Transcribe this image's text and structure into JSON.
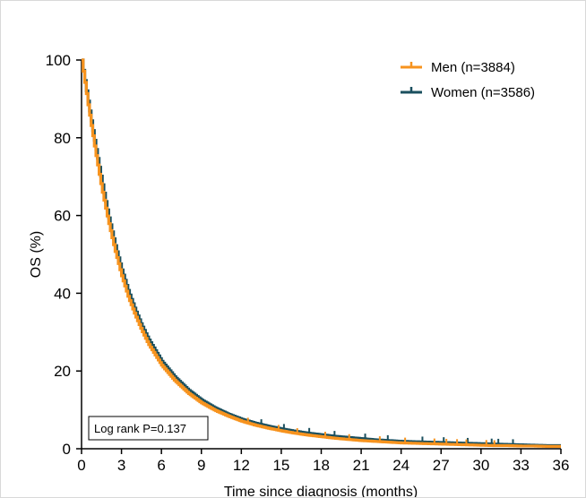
{
  "chart_data": {
    "type": "line",
    "xlabel": "Time since diagnosis (months)",
    "ylabel": "OS (%)",
    "xlim": [
      0,
      36
    ],
    "ylim": [
      0,
      100
    ],
    "xticks": [
      0,
      3,
      6,
      9,
      12,
      15,
      18,
      21,
      24,
      27,
      30,
      33,
      36
    ],
    "yticks": [
      0,
      20,
      40,
      60,
      80,
      100
    ],
    "grid": false,
    "legend_position": "top-right",
    "annotation": "Log rank P=0.137",
    "series": [
      {
        "name": "Men (n=3884)",
        "color": "#f7931e",
        "x": [
          0,
          0.5,
          1,
          1.5,
          2,
          2.5,
          3,
          3.5,
          4,
          4.5,
          5,
          6,
          7,
          8,
          9,
          10,
          11,
          12,
          13,
          14,
          15,
          16,
          17,
          18,
          19,
          20,
          21,
          22,
          23,
          24,
          25,
          26,
          27,
          28,
          29,
          30,
          31,
          32,
          33,
          34,
          35,
          36
        ],
        "y": [
          100,
          88,
          77,
          67,
          58.5,
          51,
          44.5,
          39,
          34.5,
          30.5,
          27,
          21.5,
          17.5,
          14.3,
          11.8,
          9.9,
          8.4,
          7.1,
          6.1,
          5.3,
          4.6,
          4.0,
          3.5,
          3.1,
          2.7,
          2.4,
          2.1,
          1.9,
          1.7,
          1.5,
          1.4,
          1.3,
          1.2,
          1.1,
          1.0,
          0.9,
          0.8,
          0.8,
          0.7,
          0.7,
          0.6,
          0.6
        ],
        "censor_x": [
          12.5,
          14.8,
          16.2,
          18.3,
          20.1,
          22.4,
          24.3,
          26.5,
          27.4,
          28.2,
          28.9,
          30.4,
          31.0
        ]
      },
      {
        "name": "Women (n=3586)",
        "color": "#1a4f5e",
        "x": [
          0,
          0.5,
          1,
          1.5,
          2,
          2.5,
          3,
          3.5,
          4,
          4.5,
          5,
          6,
          7,
          8,
          9,
          10,
          11,
          12,
          13,
          14,
          15,
          16,
          17,
          18,
          19,
          20,
          21,
          22,
          23,
          24,
          25,
          26,
          27,
          28,
          29,
          30,
          31,
          32,
          33,
          34,
          35,
          36
        ],
        "y": [
          100,
          89,
          78.5,
          69,
          60,
          52.5,
          46,
          40.5,
          35.8,
          31.7,
          28.2,
          22.5,
          18.4,
          15.1,
          12.5,
          10.5,
          8.9,
          7.6,
          6.6,
          5.8,
          5.1,
          4.5,
          4.0,
          3.6,
          3.2,
          2.9,
          2.6,
          2.3,
          2.1,
          1.9,
          1.8,
          1.7,
          1.6,
          1.5,
          1.4,
          1.3,
          1.2,
          1.1,
          1.0,
          0.9,
          0.8,
          0.8
        ],
        "censor_x": [
          13.5,
          15.2,
          17.1,
          19.0,
          21.3,
          23.0,
          25.6,
          27.2,
          29.0,
          30.8,
          31.3,
          32.4
        ]
      }
    ]
  }
}
